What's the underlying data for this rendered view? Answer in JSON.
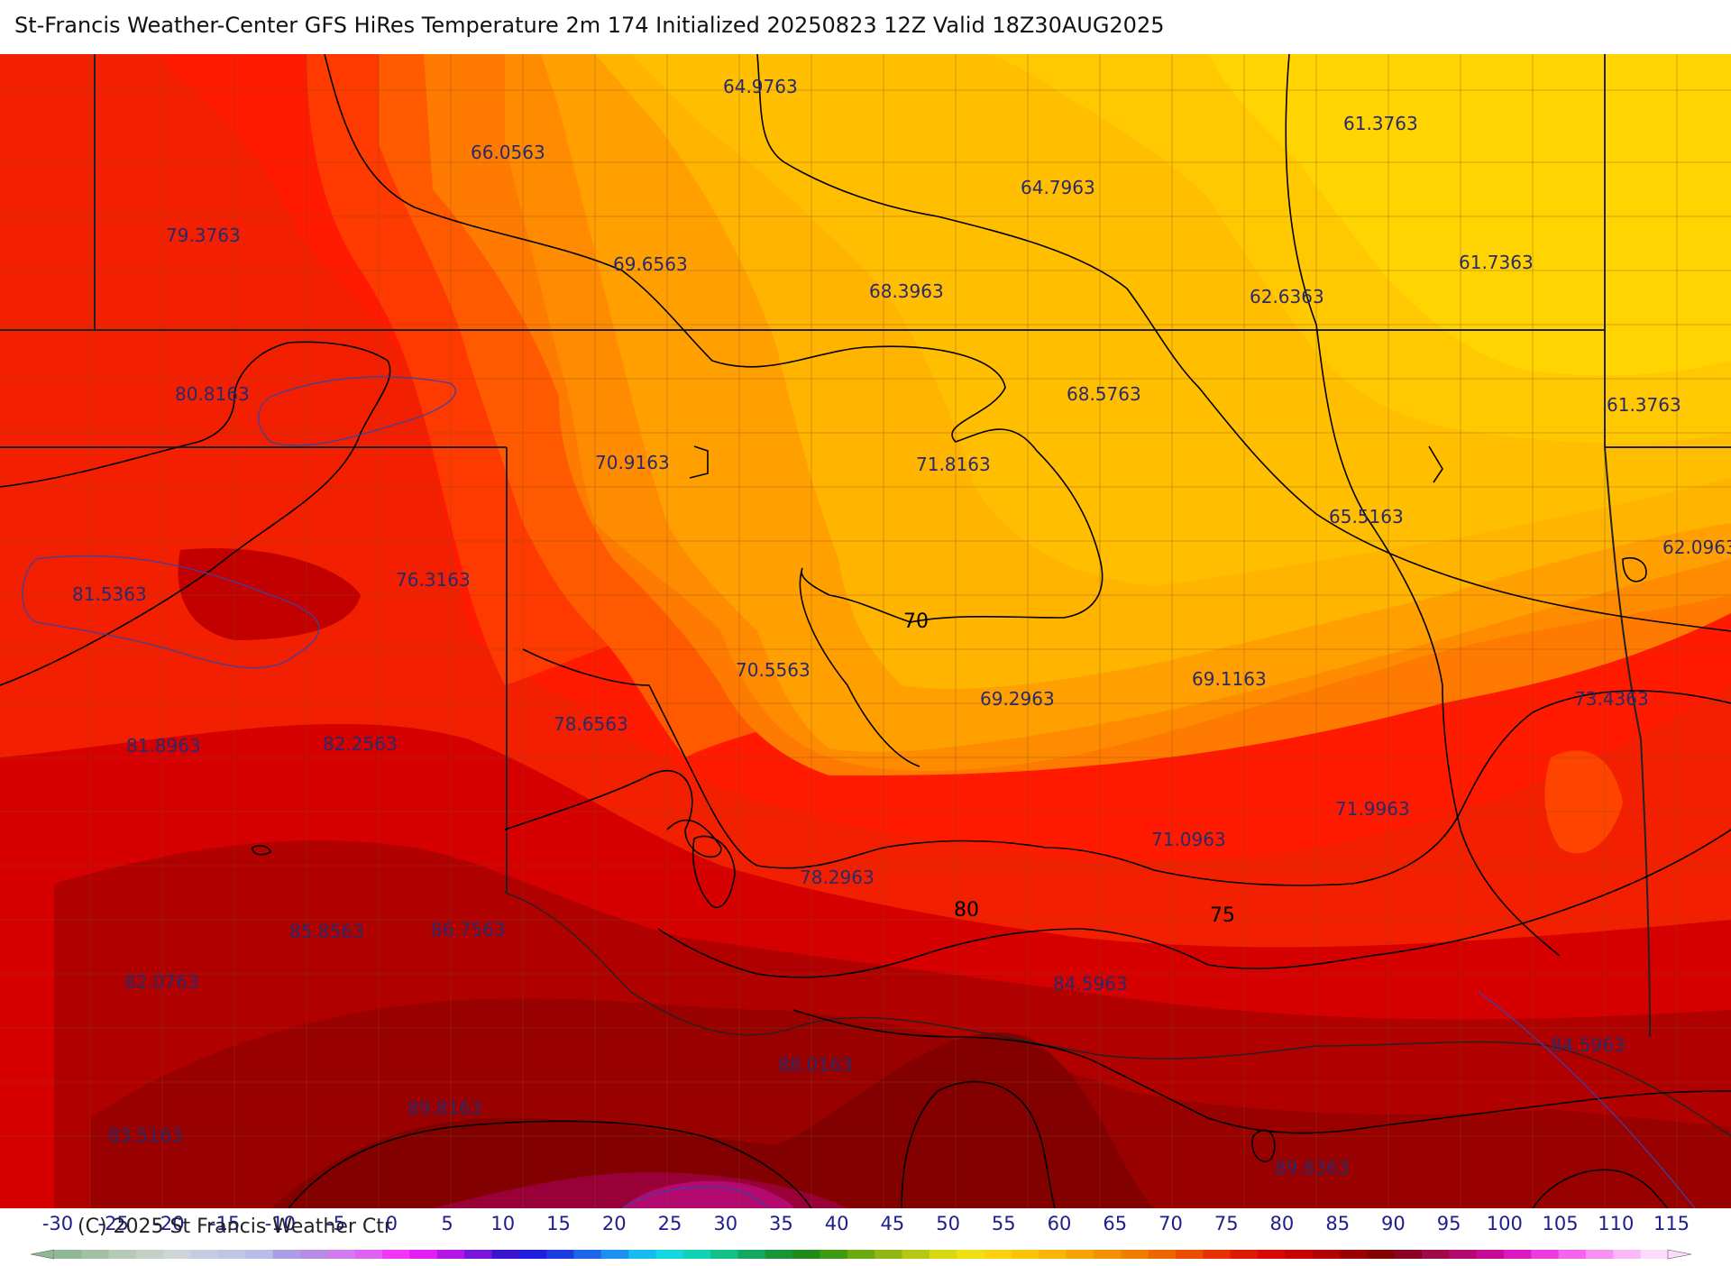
{
  "header": {
    "title": "St-Francis Weather-Center GFS HiRes Temperature 2m  174 Initialized 20250823 12Z Valid 18Z30AUG2025"
  },
  "map": {
    "point_values": [
      "64.9763",
      "61.3763",
      "66.0563",
      "64.7963",
      "79.3763",
      "69.6563",
      "68.3963",
      "62.6363",
      "61.7363",
      "80.8163",
      "68.5763",
      "61.3763",
      "70.9163",
      "71.8163",
      "65.5163",
      "62.0963",
      "81.5363",
      "76.3163",
      "70.5563",
      "69.2963",
      "69.1163",
      "73.4363",
      "81.8963",
      "82.2563",
      "78.6563",
      "71.9963",
      "71.0963",
      "78.2963",
      "85.8563",
      "86.7563",
      "82.0763",
      "84.5963",
      "84.5963",
      "88.0163",
      "89.8163",
      "83.5163",
      "89.6363"
    ],
    "contour_labels": [
      "70",
      "80",
      "75"
    ]
  },
  "legend": {
    "ticks": [
      "-30",
      "-25",
      "-20",
      "-15",
      "-10",
      "-5",
      "0",
      "5",
      "10",
      "15",
      "20",
      "25",
      "30",
      "35",
      "40",
      "45",
      "50",
      "55",
      "60",
      "65",
      "70",
      "75",
      "80",
      "85",
      "90",
      "95",
      "100",
      "105",
      "110",
      "115"
    ],
    "colors": [
      "#8fb896",
      "#a3c0a5",
      "#b5cab5",
      "#c4d0c6",
      "#cfd4d8",
      "#c6cde2",
      "#bec6e6",
      "#b8bde8",
      "#ac9ee6",
      "#b98be8",
      "#d27af0",
      "#e261f5",
      "#f236f8",
      "#e21ef2",
      "#b414e6",
      "#7a14d6",
      "#3a14d0",
      "#1f1ee0",
      "#1b3ce0",
      "#1c64e8",
      "#1c90f0",
      "#16bcf0",
      "#12d6e0",
      "#10d2b4",
      "#12c08a",
      "#14a860",
      "#189636",
      "#1e8a18",
      "#3e9a10",
      "#6aaa10",
      "#90b814",
      "#b6c814",
      "#d8d814",
      "#f0e010",
      "#fdd20c",
      "#fbc408",
      "#f9b404",
      "#f8a200",
      "#f59000",
      "#f27c00",
      "#ee6600",
      "#ea4c00",
      "#e63200",
      "#e01a00",
      "#d80800",
      "#c80000",
      "#b40000",
      "#9a0000",
      "#820000",
      "#8a0020",
      "#a00848",
      "#b40a70",
      "#c80a98",
      "#dc18c0",
      "#ec3ae0",
      "#f564ee",
      "#f890f4",
      "#fab8f8",
      "#fcdcfc"
    ]
  },
  "copyright": "(C) 2025 St Francis Weather Ctr"
}
